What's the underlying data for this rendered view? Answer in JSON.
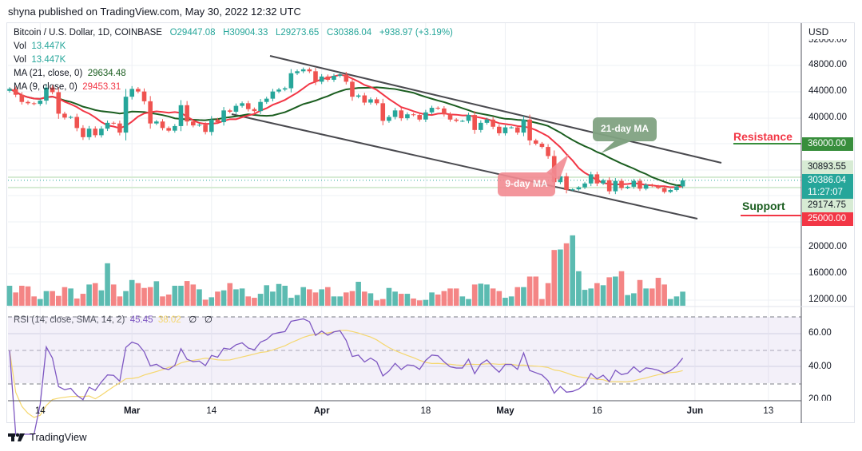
{
  "publish_line": "shyna published on TradingView.com, May 30, 2022 12:32 UTC",
  "legend": {
    "symbol": "Bitcoin / U.S. Dollar, 1D, COINBASE",
    "open": "O29447.08",
    "high": "H30904.33",
    "low": "L29273.65",
    "close": "C30386.04",
    "change": "+938.97 (+3.19%)",
    "vol_label": "Vol",
    "vol_value": "13.447K",
    "ma21_label": "MA (21, close, 0)",
    "ma21_value": "29634.48",
    "ma9_label": "MA (9, close, 0)",
    "ma9_value": "29453.31",
    "rsi_label": "RSI (14, close, SMA, 14, 2)",
    "rsi_value": "45.45",
    "rsi_sma_value": "38.02",
    "rsi_extra1": "∅",
    "rsi_extra2": "∅"
  },
  "currency": "USD",
  "price_axis": [
    "52000.00",
    "48000.00",
    "44000.00",
    "40000.00",
    "20000.00",
    "16000.00",
    "12000.00"
  ],
  "rsi_axis": [
    "60.00",
    "40.00",
    "20.00"
  ],
  "price_tags": {
    "resistance": "36000.00",
    "high": "30893.55",
    "last": "30386.04",
    "countdown": "11:27:07",
    "low": "29174.75",
    "support": "25000.00"
  },
  "annotations": {
    "ma21_callout": "21-day MA",
    "ma9_callout": "9-day MA",
    "resistance": "Resistance",
    "support": "Support"
  },
  "x_axis": [
    {
      "label": "14",
      "date": "2022-02-14",
      "bold": false
    },
    {
      "label": "Mar",
      "date": "2022-03-01",
      "bold": true
    },
    {
      "label": "14",
      "date": "2022-03-14",
      "bold": false
    },
    {
      "label": "Apr",
      "date": "2022-04-01",
      "bold": true
    },
    {
      "label": "18",
      "date": "2022-04-18",
      "bold": false
    },
    {
      "label": "May",
      "date": "2022-05-01",
      "bold": true
    },
    {
      "label": "16",
      "date": "2022-05-16",
      "bold": false
    },
    {
      "label": "Jun",
      "date": "2022-06-01",
      "bold": true
    },
    {
      "label": "13",
      "date": "2022-06-13",
      "bold": false
    }
  ],
  "footer": "TradingView",
  "colors": {
    "up": "#26a69a",
    "down": "#ef5350",
    "ma21": "#1b5e20",
    "ma9": "#f23645",
    "rsi": "#7e57c2",
    "rsi_sma": "#f5d76e",
    "resistance_tag": "#388e3c",
    "support_tag": "#f23645"
  },
  "chart_data": {
    "type": "candlestick",
    "interval": "1D",
    "first_bar": "2022-02-09",
    "last_bar": "2022-05-30",
    "first_open": 44100,
    "close": [
      44400,
      43500,
      42400,
      42200,
      42100,
      42600,
      44600,
      43900,
      40600,
      40000,
      40100,
      38400,
      37000,
      38300,
      37300,
      38300,
      39200,
      39100,
      37700,
      43200,
      44400,
      44000,
      42500,
      39100,
      39400,
      38400,
      38000,
      38700,
      41900,
      39400,
      38800,
      38900,
      37800,
      39700,
      39300,
      41100,
      40900,
      41800,
      42200,
      41300,
      41000,
      42400,
      42900,
      44000,
      44300,
      44500,
      46800,
      47100,
      47400,
      47100,
      45500,
      46300,
      45800,
      46400,
      46600,
      45500,
      43200,
      43400,
      42300,
      42800,
      42200,
      39500,
      40100,
      41100,
      39900,
      40500,
      40400,
      39700,
      40800,
      41500,
      41400,
      40500,
      39700,
      39500,
      39500,
      40400,
      38100,
      39200,
      39700,
      38600,
      37600,
      38500,
      38500,
      37700,
      39700,
      36500,
      36000,
      35500,
      34100,
      30100,
      31000,
      28900,
      29000,
      29300,
      29900,
      31300,
      29900,
      30400,
      28700,
      30300,
      29200,
      29400,
      30300,
      29100,
      29700,
      29500,
      29200,
      28600,
      28900,
      29447.08,
      30386.04
    ],
    "volume_k": [
      19.1,
      12.7,
      19.1,
      18.5,
      8.9,
      6.4,
      14.0,
      14.0,
      9.4,
      17.8,
      16.5,
      6.9,
      11.4,
      20.3,
      21.6,
      14.7,
      40.6,
      20.3,
      8.9,
      14.0,
      24.6,
      21.6,
      17.0,
      17.8,
      23.4,
      8.9,
      10.7,
      19.1,
      19.1,
      23.6,
      20.3,
      15.7,
      5.8,
      8.1,
      13.5,
      14.7,
      21.6,
      15.7,
      16.5,
      8.9,
      7.6,
      11.4,
      19.6,
      13.5,
      20.8,
      19.1,
      7.6,
      10.2,
      17.8,
      15.7,
      12.7,
      15.7,
      17.8,
      8.9,
      8.9,
      12.7,
      14.0,
      22.9,
      13.5,
      11.9,
      5.1,
      6.4,
      17.0,
      13.5,
      11.4,
      11.4,
      6.9,
      5.1,
      5.6,
      12.7,
      10.7,
      14.0,
      16.5,
      16.5,
      8.9,
      6.4,
      20.3,
      21.1,
      20.3,
      16.5,
      14.0,
      7.6,
      8.9,
      17.8,
      17.8,
      27.9,
      27.9,
      6.4,
      21.6,
      53.3,
      53.8,
      59.7,
      67.3,
      33.0,
      15.2,
      16.5,
      21.6,
      19.6,
      27.2,
      27.9,
      33.0,
      10.2,
      11.9,
      24.6,
      16.5,
      16.5,
      26.7,
      20.3,
      6.4,
      8.9,
      13.447
    ],
    "moving_averages": [
      21,
      9
    ],
    "rsi_period": 14,
    "rsi_sma_period": 14,
    "rsi_bands": [
      30,
      50,
      70
    ],
    "levels": {
      "resistance": 36000,
      "support": 25000
    },
    "price_range": [
      9000,
      54000
    ],
    "rsi_range": [
      17,
      87
    ],
    "grid": true
  }
}
